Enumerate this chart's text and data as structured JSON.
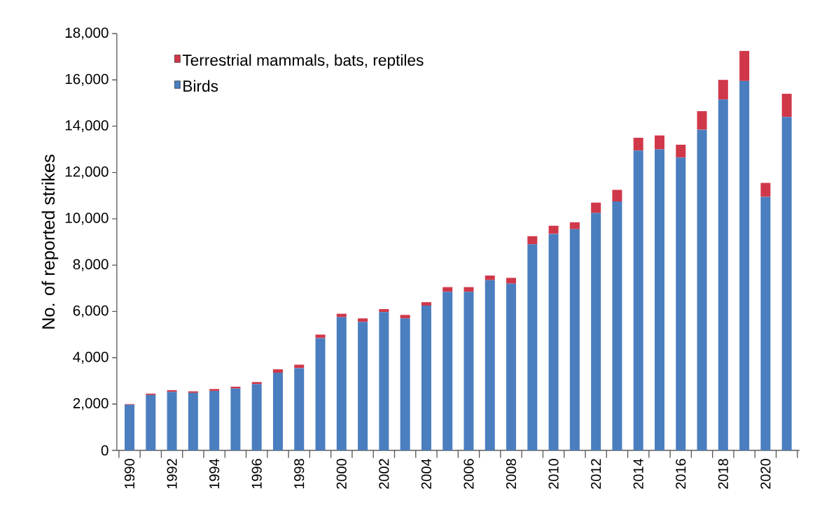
{
  "chart_data": {
    "type": "bar",
    "stacked": true,
    "ylabel": "No. of reported strikes",
    "categories": [
      "1990",
      null,
      "1992",
      null,
      "1994",
      null,
      "1996",
      null,
      "1998",
      null,
      "2000",
      null,
      "2002",
      null,
      "2004",
      null,
      "2006",
      null,
      "2008",
      null,
      "2010",
      null,
      "2012",
      null,
      "2014",
      null,
      "2016",
      null,
      "2018",
      null,
      "2020",
      null
    ],
    "series": [
      {
        "name": "Birds",
        "color": "#4a7ebf",
        "values": [
          1970,
          2390,
          2530,
          2480,
          2570,
          2670,
          2860,
          3350,
          3550,
          4850,
          5750,
          5550,
          5970,
          5700,
          6250,
          6850,
          6850,
          7350,
          7200,
          8900,
          9350,
          9550,
          10250,
          10750,
          12950,
          13000,
          12650,
          13850,
          15150,
          15950,
          10950,
          14400
        ]
      },
      {
        "name": "Terrestrial mammals, bats, reptiles",
        "color": "#d0384a",
        "values": [
          30,
          60,
          70,
          70,
          80,
          80,
          90,
          150,
          150,
          150,
          150,
          150,
          130,
          150,
          150,
          200,
          200,
          200,
          250,
          350,
          350,
          300,
          450,
          500,
          550,
          600,
          550,
          800,
          850,
          1300,
          600,
          1000
        ]
      }
    ],
    "ylim": [
      0,
      18000
    ],
    "yticks": [
      {
        "value": 0,
        "label": "0"
      },
      {
        "value": 2000,
        "label": "2,000"
      },
      {
        "value": 4000,
        "label": "4,000"
      },
      {
        "value": 6000,
        "label": "6,000"
      },
      {
        "value": 8000,
        "label": "8,000"
      },
      {
        "value": 10000,
        "label": "10,000"
      },
      {
        "value": 12000,
        "label": "12,000"
      },
      {
        "value": 14000,
        "label": "14,000"
      },
      {
        "value": 16000,
        "label": "16,000"
      },
      {
        "value": 18000,
        "label": "18,000"
      }
    ],
    "legend": "top left",
    "grid": false
  }
}
